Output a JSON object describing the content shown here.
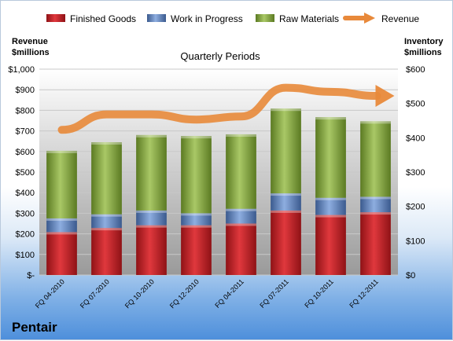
{
  "company": "Pentair",
  "chart_data": {
    "type": "bar",
    "subtype": "stacked-bar-with-line",
    "title": "Quarterly Periods",
    "left_axis_label": "Revenue\n$millions",
    "right_axis_label": "Inventory\n$millions",
    "left_ticks": [
      "$-",
      "$100",
      "$200",
      "$300",
      "$400",
      "$500",
      "$600",
      "$700",
      "$800",
      "$900",
      "$1,000"
    ],
    "right_ticks": [
      "$0",
      "$100",
      "$200",
      "$300",
      "$400",
      "$500",
      "$600"
    ],
    "left_ylim": [
      0,
      1000
    ],
    "right_ylim": [
      0,
      600
    ],
    "grid": true,
    "legend_position": "top",
    "categories": [
      "FQ 04-2010",
      "FQ 07-2010",
      "FQ 10-2010",
      "FQ 12-2010",
      "FQ 04-2011",
      "FQ 07-2011",
      "FQ 10-2011",
      "FQ 12-2011"
    ],
    "series": [
      {
        "name": "Finished Goods",
        "axis": "right",
        "color": "#c0282d",
        "values": [
          125,
          137,
          145,
          145,
          150,
          188,
          175,
          183
        ]
      },
      {
        "name": "Work in Progress",
        "axis": "right",
        "color": "#5a7eb8",
        "values": [
          40,
          40,
          43,
          35,
          43,
          50,
          50,
          45
        ]
      },
      {
        "name": "Raw Materials",
        "axis": "right",
        "color": "#7e9f3a",
        "values": [
          197,
          210,
          220,
          225,
          217,
          247,
          235,
          220
        ]
      },
      {
        "name": "Revenue",
        "axis": "left",
        "type": "line",
        "color": "#e8893a",
        "values": [
          705,
          780,
          780,
          755,
          770,
          910,
          890,
          870
        ]
      }
    ]
  }
}
